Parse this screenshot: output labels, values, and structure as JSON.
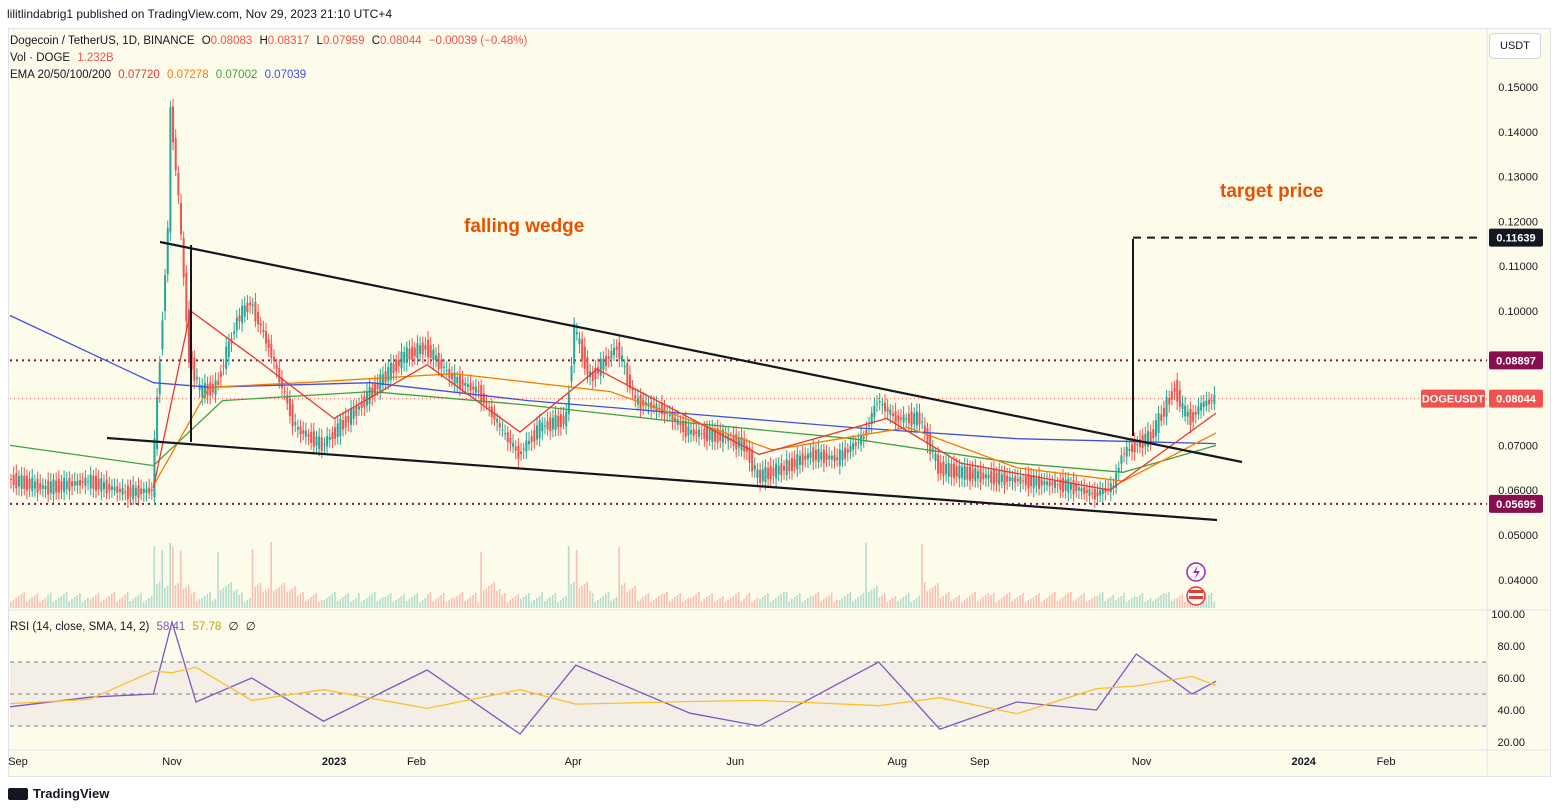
{
  "header": {
    "publisher_line": "lilitlindabrig1 published on TradingView.com, Nov 29, 2023 21:10 UTC+4"
  },
  "legend": {
    "symbol": "Dogecoin / TetherUS, 1D, BINANCE",
    "o_label": "O",
    "o": "0.08083",
    "h_label": "H",
    "h": "0.08317",
    "l_label": "L",
    "l": "0.07959",
    "c_label": "C",
    "c": "0.08044",
    "change": "−0.00039 (−0.48%)",
    "vol_label": "Vol · DOGE",
    "vol": "1.232B",
    "ema_label": "EMA 20/50/100/200",
    "ema20": "0.07720",
    "ema50": "0.07278",
    "ema100": "0.07002",
    "ema200": "0.07039",
    "rsi_label": "RSI (14, close, SMA, 14, 2)",
    "rsi": "58.41",
    "rsi_ma": "57.78",
    "rsi_extra1": "∅",
    "rsi_extra2": "∅"
  },
  "unit_button": "USDT",
  "annotations": {
    "pattern": "falling wedge",
    "target": "target price"
  },
  "tags": {
    "target": "0.11639",
    "resistance": "0.08897",
    "symbol_tag": "DOGEUSDT",
    "last": "0.08044",
    "support": "0.05695"
  },
  "price_axis": [
    "0.15000",
    "0.14000",
    "0.13000",
    "0.12000",
    "0.11000",
    "0.10000",
    "0.09000",
    "0.08000",
    "0.07000",
    "0.06000",
    "0.05000",
    "0.04000"
  ],
  "rsi_axis": [
    "100.00",
    "80.00",
    "60.00",
    "40.00",
    "20.00"
  ],
  "time_axis": [
    "Sep",
    "Nov",
    "2023",
    "Feb",
    "Apr",
    "Jun",
    "Aug",
    "Sep",
    "Nov",
    "2024",
    "Feb"
  ],
  "colors": {
    "up": "#26a69a",
    "down": "#ef5350",
    "ema20": "#e53935",
    "ema50": "#f57c00",
    "ema100": "#43a047",
    "ema200": "#3f51e0",
    "annotation": "#e65100",
    "rsi": "#7e57c2",
    "rsi_ma": "#fbc02d",
    "level": "#880e4f"
  },
  "footer": {
    "brand": "TradingView"
  },
  "chart_data": {
    "type": "line",
    "symbol": "DOGEUSDT",
    "ylim": [
      0.038,
      0.157
    ],
    "price_points": [
      {
        "date": "2022-09-01",
        "close": 0.0625
      },
      {
        "date": "2022-09-15",
        "close": 0.0605
      },
      {
        "date": "2022-10-01",
        "close": 0.062
      },
      {
        "date": "2022-10-15",
        "close": 0.0595
      },
      {
        "date": "2022-10-25",
        "close": 0.06
      },
      {
        "date": "2022-10-28",
        "close": 0.09
      },
      {
        "date": "2022-10-31",
        "close": 0.118
      },
      {
        "date": "2022-11-01",
        "close": 0.145
      },
      {
        "date": "2022-11-04",
        "close": 0.125
      },
      {
        "date": "2022-11-08",
        "close": 0.09
      },
      {
        "date": "2022-11-12",
        "close": 0.082
      },
      {
        "date": "2022-11-18",
        "close": 0.083
      },
      {
        "date": "2022-11-26",
        "close": 0.098
      },
      {
        "date": "2022-12-01",
        "close": 0.102
      },
      {
        "date": "2022-12-08",
        "close": 0.092
      },
      {
        "date": "2022-12-18",
        "close": 0.074
      },
      {
        "date": "2022-12-28",
        "close": 0.07
      },
      {
        "date": "2023-01-10",
        "close": 0.078
      },
      {
        "date": "2023-01-20",
        "close": 0.085
      },
      {
        "date": "2023-01-28",
        "close": 0.09
      },
      {
        "date": "2023-02-05",
        "close": 0.092
      },
      {
        "date": "2023-02-15",
        "close": 0.085
      },
      {
        "date": "2023-02-25",
        "close": 0.082
      },
      {
        "date": "2023-03-05",
        "close": 0.074
      },
      {
        "date": "2023-03-12",
        "close": 0.068
      },
      {
        "date": "2023-03-20",
        "close": 0.074
      },
      {
        "date": "2023-03-30",
        "close": 0.076
      },
      {
        "date": "2023-04-02",
        "close": 0.096
      },
      {
        "date": "2023-04-08",
        "close": 0.085
      },
      {
        "date": "2023-04-18",
        "close": 0.092
      },
      {
        "date": "2023-04-25",
        "close": 0.08
      },
      {
        "date": "2023-05-05",
        "close": 0.078
      },
      {
        "date": "2023-05-15",
        "close": 0.073
      },
      {
        "date": "2023-05-28",
        "close": 0.072
      },
      {
        "date": "2023-06-05",
        "close": 0.07
      },
      {
        "date": "2023-06-10",
        "close": 0.063
      },
      {
        "date": "2023-06-20",
        "close": 0.065
      },
      {
        "date": "2023-06-30",
        "close": 0.068
      },
      {
        "date": "2023-07-10",
        "close": 0.067
      },
      {
        "date": "2023-07-20",
        "close": 0.072
      },
      {
        "date": "2023-07-25",
        "close": 0.08
      },
      {
        "date": "2023-08-01",
        "close": 0.076
      },
      {
        "date": "2023-08-10",
        "close": 0.076
      },
      {
        "date": "2023-08-17",
        "close": 0.065
      },
      {
        "date": "2023-08-25",
        "close": 0.064
      },
      {
        "date": "2023-09-05",
        "close": 0.063
      },
      {
        "date": "2023-09-20",
        "close": 0.062
      },
      {
        "date": "2023-10-05",
        "close": 0.061
      },
      {
        "date": "2023-10-15",
        "close": 0.059
      },
      {
        "date": "2023-10-22",
        "close": 0.061
      },
      {
        "date": "2023-10-25",
        "close": 0.068
      },
      {
        "date": "2023-10-30",
        "close": 0.07
      },
      {
        "date": "2023-11-05",
        "close": 0.072
      },
      {
        "date": "2023-11-10",
        "close": 0.078
      },
      {
        "date": "2023-11-14",
        "close": 0.083
      },
      {
        "date": "2023-11-17",
        "close": 0.078
      },
      {
        "date": "2023-11-20",
        "close": 0.076
      },
      {
        "date": "2023-11-24",
        "close": 0.079
      },
      {
        "date": "2023-11-29",
        "close": 0.0804
      }
    ],
    "ema200_points": [
      {
        "date": "2022-09-01",
        "value": 0.099
      },
      {
        "date": "2022-10-25",
        "value": 0.084
      },
      {
        "date": "2022-11-15",
        "value": 0.083
      },
      {
        "date": "2023-01-15",
        "value": 0.084
      },
      {
        "date": "2023-03-15",
        "value": 0.08
      },
      {
        "date": "2023-05-15",
        "value": 0.077
      },
      {
        "date": "2023-07-15",
        "value": 0.074
      },
      {
        "date": "2023-09-15",
        "value": 0.0715
      },
      {
        "date": "2023-11-29",
        "value": 0.0704
      }
    ],
    "ema100_points": [
      {
        "date": "2022-09-01",
        "value": 0.07
      },
      {
        "date": "2022-10-25",
        "value": 0.0655
      },
      {
        "date": "2022-11-20",
        "value": 0.08
      },
      {
        "date": "2023-01-15",
        "value": 0.082
      },
      {
        "date": "2023-03-15",
        "value": 0.079
      },
      {
        "date": "2023-05-15",
        "value": 0.075
      },
      {
        "date": "2023-07-15",
        "value": 0.0715
      },
      {
        "date": "2023-09-15",
        "value": 0.066
      },
      {
        "date": "2023-10-25",
        "value": 0.064
      },
      {
        "date": "2023-11-29",
        "value": 0.07
      }
    ],
    "ema50_points": [
      {
        "date": "2022-10-25",
        "value": 0.061
      },
      {
        "date": "2022-11-15",
        "value": 0.083
      },
      {
        "date": "2022-12-20",
        "value": 0.084
      },
      {
        "date": "2023-02-15",
        "value": 0.086
      },
      {
        "date": "2023-04-15",
        "value": 0.082
      },
      {
        "date": "2023-06-15",
        "value": 0.069
      },
      {
        "date": "2023-08-05",
        "value": 0.074
      },
      {
        "date": "2023-09-15",
        "value": 0.065
      },
      {
        "date": "2023-10-25",
        "value": 0.062
      },
      {
        "date": "2023-11-29",
        "value": 0.0728
      }
    ],
    "ema20_points": [
      {
        "date": "2022-10-25",
        "value": 0.0605
      },
      {
        "date": "2022-11-08",
        "value": 0.1
      },
      {
        "date": "2022-12-01",
        "value": 0.09
      },
      {
        "date": "2023-01-01",
        "value": 0.076
      },
      {
        "date": "2023-02-05",
        "value": 0.088
      },
      {
        "date": "2023-03-12",
        "value": 0.073
      },
      {
        "date": "2023-04-10",
        "value": 0.087
      },
      {
        "date": "2023-06-10",
        "value": 0.068
      },
      {
        "date": "2023-07-28",
        "value": 0.076
      },
      {
        "date": "2023-08-25",
        "value": 0.066
      },
      {
        "date": "2023-10-20",
        "value": 0.06
      },
      {
        "date": "2023-11-29",
        "value": 0.0772
      }
    ],
    "levels": [
      0.08897,
      0.05695
    ],
    "target": 0.11639,
    "rsi_points": [
      {
        "date": "2022-09-01",
        "value": 42
      },
      {
        "date": "2022-10-01",
        "value": 48
      },
      {
        "date": "2022-10-25",
        "value": 50
      },
      {
        "date": "2022-11-01",
        "value": 95
      },
      {
        "date": "2022-11-10",
        "value": 45
      },
      {
        "date": "2022-12-01",
        "value": 60
      },
      {
        "date": "2022-12-28",
        "value": 33
      },
      {
        "date": "2023-02-05",
        "value": 65
      },
      {
        "date": "2023-03-12",
        "value": 25
      },
      {
        "date": "2023-04-02",
        "value": 68
      },
      {
        "date": "2023-05-15",
        "value": 38
      },
      {
        "date": "2023-06-10",
        "value": 30
      },
      {
        "date": "2023-07-25",
        "value": 70
      },
      {
        "date": "2023-08-17",
        "value": 28
      },
      {
        "date": "2023-09-15",
        "value": 45
      },
      {
        "date": "2023-10-15",
        "value": 40
      },
      {
        "date": "2023-10-30",
        "value": 75
      },
      {
        "date": "2023-11-20",
        "value": 50
      },
      {
        "date": "2023-11-29",
        "value": 58
      }
    ]
  }
}
